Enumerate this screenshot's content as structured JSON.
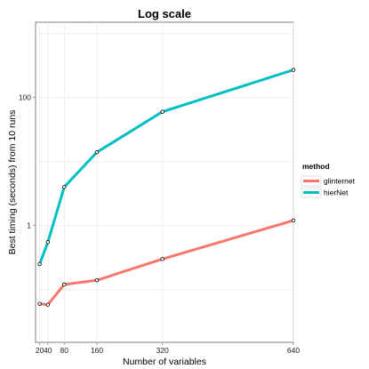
{
  "chart_data": {
    "type": "line",
    "title": "Log scale",
    "xlabel": "Number of variables",
    "ylabel": "Best timing (seconds) from 10 runs",
    "x_ticks": [
      20,
      40,
      80,
      160,
      320,
      640
    ],
    "y_scale": "log10",
    "y_ticks": [
      1,
      100
    ],
    "xlim": [
      10,
      640
    ],
    "ylim": [
      0.015,
      1500
    ],
    "grid": true,
    "legend": {
      "title": "method",
      "position": "right"
    },
    "series": [
      {
        "name": "glinternet",
        "color": "#f8766d",
        "x": [
          20,
          40,
          80,
          160,
          320,
          640
        ],
        "y": [
          0.06,
          0.058,
          0.12,
          0.14,
          0.3,
          1.2
        ]
      },
      {
        "name": "hierNet",
        "color": "#00bfc4",
        "x": [
          20,
          40,
          80,
          160,
          320,
          640
        ],
        "y": [
          0.25,
          0.55,
          4,
          14,
          60,
          270
        ]
      }
    ]
  }
}
